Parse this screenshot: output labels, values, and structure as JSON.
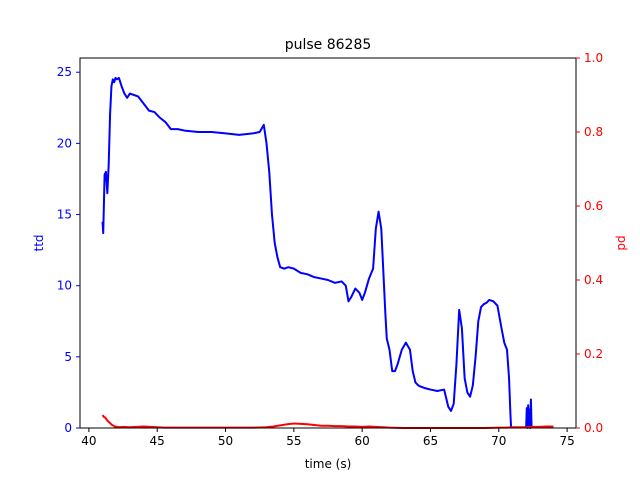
{
  "chart_data": {
    "type": "line",
    "title": "pulse 86285",
    "xlabel": "time (s)",
    "ylabel_left": "ttd",
    "ylabel_right": "pd",
    "xlim": [
      39.35,
      75.65
    ],
    "ylim_left": [
      0,
      26
    ],
    "ylim_right": [
      0,
      1.0
    ],
    "x_ticks": [
      40,
      45,
      50,
      55,
      60,
      65,
      70,
      75
    ],
    "y_left_ticks": [
      0,
      5,
      10,
      15,
      20,
      25
    ],
    "y_right_ticks": [
      0.0,
      0.2,
      0.4,
      0.6,
      0.8,
      1.0
    ],
    "grid": false,
    "colors": {
      "left_axis": "#0000ff",
      "right_axis": "#ff0000",
      "ttd": "#0000ff",
      "pd": "#ff0000"
    },
    "series": [
      {
        "axis": "left",
        "x": [
          41.0,
          41.05,
          41.15,
          41.25,
          41.35,
          41.45,
          41.55,
          41.65,
          41.75,
          41.85,
          41.95,
          42.05,
          42.2,
          42.4,
          42.6,
          42.8,
          43.0,
          43.3,
          43.6,
          44.0,
          44.4,
          44.8,
          45.2,
          45.6,
          46.0,
          46.5,
          47.0,
          48.0,
          49.0,
          50.0,
          51.0,
          52.0,
          52.5,
          52.8,
          53.0,
          53.2,
          53.4,
          53.6,
          53.8,
          54.0,
          54.3,
          54.6,
          55.0,
          55.5,
          56.0,
          56.5,
          57.0,
          57.5,
          58.0,
          58.5,
          58.8,
          59.0,
          59.2,
          59.5,
          59.8,
          60.0,
          60.2,
          60.5,
          60.8,
          61.0,
          61.2,
          61.4,
          61.6,
          61.7,
          61.8,
          62.0,
          62.2,
          62.4,
          62.6,
          62.9,
          63.2,
          63.5,
          63.7,
          63.9,
          64.1,
          64.3,
          64.6,
          65.0,
          65.5,
          66.0,
          66.3,
          66.5,
          66.7,
          66.9,
          67.1,
          67.3,
          67.5,
          67.7,
          67.9,
          68.1,
          68.3,
          68.5,
          68.7,
          68.9,
          69.1,
          69.3,
          69.6,
          69.9,
          70.2,
          70.4,
          70.6,
          70.75,
          70.85,
          70.9
        ],
        "y": [
          14.5,
          13.7,
          17.8,
          18.0,
          16.5,
          18.5,
          22.0,
          24.0,
          24.5,
          24.3,
          24.6,
          24.5,
          24.6,
          24.0,
          23.5,
          23.2,
          23.5,
          23.4,
          23.3,
          22.8,
          22.3,
          22.2,
          21.8,
          21.5,
          21.0,
          21.0,
          20.9,
          20.8,
          20.8,
          20.7,
          20.6,
          20.7,
          20.8,
          21.3,
          20.0,
          18.0,
          15.0,
          13.0,
          12.0,
          11.3,
          11.2,
          11.3,
          11.2,
          10.9,
          10.8,
          10.6,
          10.5,
          10.4,
          10.2,
          10.3,
          10.0,
          8.9,
          9.2,
          9.8,
          9.5,
          9.0,
          9.5,
          10.5,
          11.2,
          14.0,
          15.2,
          14.0,
          10.0,
          8.0,
          6.3,
          5.5,
          4.0,
          4.0,
          4.5,
          5.5,
          6.0,
          5.5,
          4.0,
          3.2,
          3.0,
          2.9,
          2.8,
          2.7,
          2.6,
          2.7,
          1.5,
          1.2,
          1.7,
          4.5,
          8.3,
          7.0,
          3.5,
          2.5,
          2.2,
          3.0,
          5.0,
          7.5,
          8.5,
          8.7,
          8.8,
          9.0,
          8.9,
          8.6,
          7.0,
          6.0,
          5.5,
          3.5,
          1.0,
          0.0
        ]
      },
      {
        "axis": "left",
        "x": [
          72.0,
          72.05,
          72.1,
          72.15,
          72.2,
          72.25,
          72.3,
          72.35,
          72.4
        ],
        "y": [
          0.0,
          1.4,
          0.0,
          1.6,
          0.1,
          1.3,
          0.0,
          2.0,
          0.0
        ]
      },
      {
        "axis": "right",
        "x": [
          41.0,
          41.1,
          41.2,
          41.35,
          41.5,
          41.7,
          41.9,
          42.2,
          42.5,
          43.0,
          43.5,
          44.0,
          44.5,
          45.0,
          45.5,
          46.0,
          47.0,
          48.0,
          49.0,
          50.0,
          51.0,
          52.0,
          53.0,
          53.5,
          54.0,
          54.5,
          55.0,
          55.5,
          56.0,
          56.5,
          57.0,
          57.5,
          58.0,
          58.5,
          59.0,
          59.5,
          60.0,
          60.5,
          61.0,
          62.0,
          63.0,
          64.0,
          65.0,
          66.0,
          67.0,
          68.0,
          69.0,
          70.0,
          70.5,
          71.0,
          72.0,
          72.5,
          73.0,
          73.5,
          74.0
        ],
        "y": [
          0.035,
          0.03,
          0.028,
          0.02,
          0.015,
          0.008,
          0.004,
          0.002,
          0.003,
          0.002,
          0.003,
          0.004,
          0.003,
          0.002,
          0.001,
          0.001,
          0.001,
          0.001,
          0.001,
          0.001,
          0.001,
          0.001,
          0.002,
          0.004,
          0.007,
          0.01,
          0.012,
          0.011,
          0.01,
          0.008,
          0.006,
          0.006,
          0.005,
          0.005,
          0.004,
          0.004,
          0.003,
          0.004,
          0.003,
          0.001,
          0.0,
          0.0,
          0.0,
          0.0,
          0.0,
          0.0,
          0.0,
          0.001,
          0.001,
          0.002,
          0.002,
          0.003,
          0.003,
          0.004,
          0.004
        ]
      }
    ]
  }
}
